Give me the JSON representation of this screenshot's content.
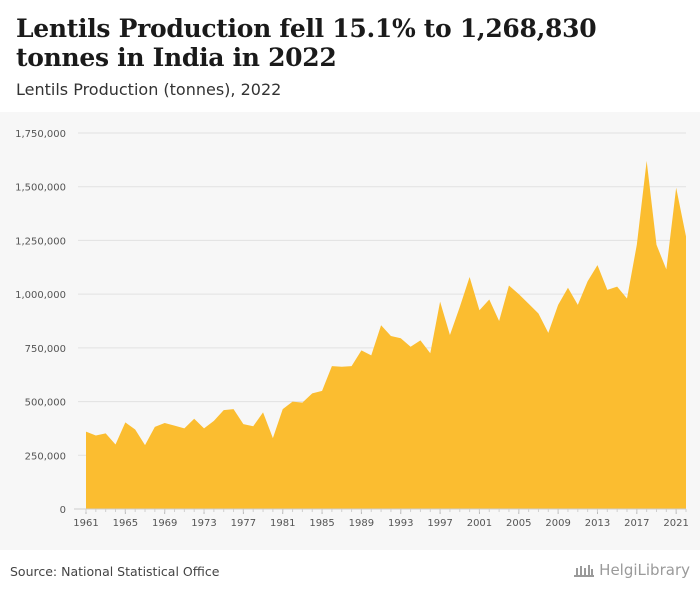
{
  "header": {
    "title": "Lentils Production fell 15.1% to 1,268,830 tonnes in India in 2022",
    "subtitle": "Lentils Production (tonnes), 2022"
  },
  "footer": {
    "source": "Source: National Statistical Office",
    "brand": "HelgiLibrary"
  },
  "colors": {
    "area": "#fbbd30",
    "grid": "#e2e2e2",
    "axis_text": "#555555"
  },
  "chart_data": {
    "type": "area",
    "title": "Lentils Production fell 15.1% to 1,268,830 tonnes in India in 2022",
    "subtitle": "Lentils Production (tonnes), 2022",
    "xlabel": "",
    "ylabel": "",
    "ylim": [
      0,
      1750000
    ],
    "y_ticks": [
      0,
      250000,
      500000,
      750000,
      1000000,
      1250000,
      1500000,
      1750000
    ],
    "y_tick_labels": [
      "0",
      "250,000",
      "500,000",
      "750,000",
      "1,000,000",
      "1,250,000",
      "1,500,000",
      "1,750,000"
    ],
    "x_tick_labels": [
      "1961",
      "1965",
      "1969",
      "1973",
      "1977",
      "1981",
      "1985",
      "1989",
      "1993",
      "1997",
      "2001",
      "2005",
      "2009",
      "2013",
      "2017",
      "2021"
    ],
    "grid": true,
    "legend": "none",
    "x": [
      1961,
      1962,
      1963,
      1964,
      1965,
      1966,
      1967,
      1968,
      1969,
      1970,
      1971,
      1972,
      1973,
      1974,
      1975,
      1976,
      1977,
      1978,
      1979,
      1980,
      1981,
      1982,
      1983,
      1984,
      1985,
      1986,
      1987,
      1988,
      1989,
      1990,
      1991,
      1992,
      1993,
      1994,
      1995,
      1996,
      1997,
      1998,
      1999,
      2000,
      2001,
      2002,
      2003,
      2004,
      2005,
      2006,
      2007,
      2008,
      2009,
      2010,
      2011,
      2012,
      2013,
      2014,
      2015,
      2016,
      2017,
      2018,
      2019,
      2020,
      2021,
      2022
    ],
    "values": [
      360000,
      342000,
      352000,
      300000,
      403000,
      370000,
      297000,
      382000,
      400000,
      388000,
      375000,
      420000,
      375000,
      410000,
      460000,
      465000,
      395000,
      385000,
      450000,
      330000,
      465000,
      500000,
      495000,
      538000,
      550000,
      665000,
      662000,
      665000,
      738000,
      715000,
      855000,
      805000,
      795000,
      755000,
      785000,
      725000,
      965000,
      810000,
      940000,
      1080000,
      925000,
      975000,
      875000,
      1040000,
      1000000,
      955000,
      910000,
      820000,
      950000,
      1030000,
      950000,
      1060000,
      1135000,
      1020000,
      1035000,
      980000,
      1230000,
      1620000,
      1230000,
      1115000,
      1495000,
      1268830
    ]
  }
}
